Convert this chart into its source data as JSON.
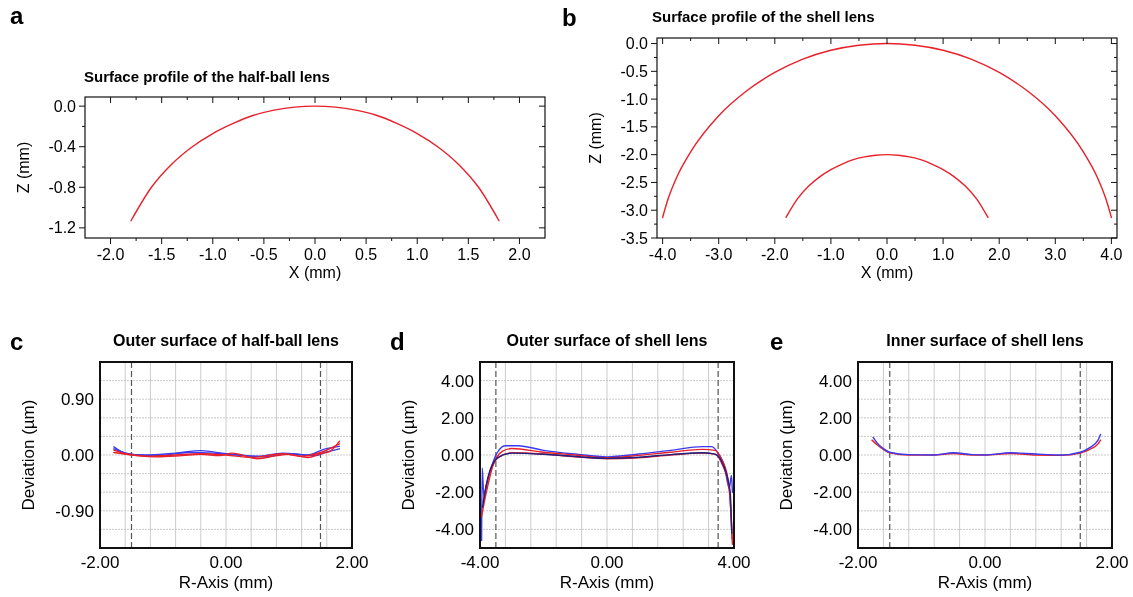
{
  "chart_data": [
    {
      "type": "line",
      "title": "Surface profile of the half-ball lens",
      "xlabel": "X (mm)",
      "ylabel": "Z (mm)",
      "annotations": [
        "a"
      ],
      "grid": false,
      "xlim": [
        -2.25,
        2.25
      ],
      "ylim": [
        -1.3,
        0.09
      ],
      "xticks": [
        {
          "value": -2,
          "label": "-2.0"
        },
        {
          "value": -1.75,
          "label": null
        },
        -1.5,
        {
          "value": -1.25,
          "label": null
        },
        {
          "value": -1,
          "label": "-1.0"
        },
        {
          "value": -0.75,
          "label": null
        },
        -0.5,
        {
          "value": -0.25,
          "label": null
        },
        {
          "value": 0,
          "label": "0.0"
        },
        {
          "value": 0.25,
          "label": null
        },
        0.5,
        {
          "value": 0.75,
          "label": null
        },
        {
          "value": 1,
          "label": "1.0"
        },
        {
          "value": 1.25,
          "label": null
        },
        1.5,
        {
          "value": 1.75,
          "label": null
        },
        {
          "value": 2,
          "label": "2.0"
        }
      ],
      "yticks": [
        {
          "value": 0,
          "label": "0.0"
        },
        {
          "value": -0.2,
          "label": null
        },
        -0.4,
        {
          "value": -0.6,
          "label": null
        },
        -0.8,
        {
          "value": -1,
          "label": null
        },
        -1.2
      ],
      "series": [
        {
          "color": "#e8202a",
          "x": [
            -1.8,
            -1.6,
            -1.4,
            -1.2,
            -1.0,
            -0.8,
            -0.6,
            -0.4,
            -0.2,
            0,
            0.2,
            0.4,
            0.6,
            0.8,
            1.0,
            1.2,
            1.4,
            1.6,
            1.8
          ],
          "values": [
            -1.13,
            -0.8,
            -0.57,
            -0.4,
            -0.27,
            -0.17,
            -0.09,
            -0.04,
            -0.01,
            0,
            -0.01,
            -0.04,
            -0.09,
            -0.17,
            -0.27,
            -0.4,
            -0.57,
            -0.8,
            -1.13
          ]
        }
      ]
    },
    {
      "type": "line",
      "title": "Surface profile of the shell lens",
      "xlabel": "X (mm)",
      "ylabel": "Z (mm)",
      "annotations": [
        "b"
      ],
      "grid": false,
      "xlim": [
        -4.1,
        4.1
      ],
      "ylim": [
        -3.5,
        0.1
      ],
      "xticks": [
        {
          "value": -4,
          "label": "-4.0"
        },
        {
          "value": -3.5,
          "label": null
        },
        {
          "value": -3,
          "label": "-3.0"
        },
        {
          "value": -2.5,
          "label": null
        },
        {
          "value": -2,
          "label": "-2.0"
        },
        {
          "value": -1.5,
          "label": null
        },
        {
          "value": -1,
          "label": "-1.0"
        },
        {
          "value": -0.5,
          "label": null
        },
        {
          "value": 0,
          "label": "0.0"
        },
        {
          "value": 0.5,
          "label": null
        },
        {
          "value": 1,
          "label": "1.0"
        },
        {
          "value": 1.5,
          "label": null
        },
        {
          "value": 2,
          "label": "2.0"
        },
        {
          "value": 2.5,
          "label": null
        },
        {
          "value": 3,
          "label": "3.0"
        },
        {
          "value": 3.5,
          "label": null
        },
        {
          "value": 4,
          "label": "4.0"
        }
      ],
      "yticks": [
        {
          "value": 0,
          "label": "0.0"
        },
        {
          "value": -0.25,
          "label": null
        },
        -0.5,
        {
          "value": -0.75,
          "label": null
        },
        {
          "value": -1,
          "label": "-1.0"
        },
        {
          "value": -1.25,
          "label": null
        },
        -1.5,
        {
          "value": -1.75,
          "label": null
        },
        {
          "value": -2,
          "label": "-2.0"
        },
        {
          "value": -2.25,
          "label": null
        },
        -2.5,
        {
          "value": -2.75,
          "label": null
        },
        {
          "value": -3,
          "label": "-3.0"
        },
        {
          "value": -3.25,
          "label": null
        },
        -3.5
      ],
      "series": [
        {
          "color": "#e8202a",
          "x": [
            -4,
            -3.9,
            -3.75,
            -3.5,
            -3,
            -2.5,
            -2,
            -1.5,
            -1,
            -0.5,
            0,
            0.5,
            1,
            1.5,
            2,
            2.5,
            3,
            3.5,
            3.75,
            3.9,
            4
          ],
          "values": [
            -3.13,
            -2.79,
            -2.41,
            -1.95,
            -1.3,
            -0.85,
            -0.52,
            -0.28,
            -0.12,
            -0.03,
            0,
            -0.03,
            -0.12,
            -0.28,
            -0.52,
            -0.85,
            -1.3,
            -1.95,
            -2.41,
            -2.79,
            -3.13
          ]
        },
        {
          "color": "#e8202a",
          "x": [
            -1.8,
            -1.6,
            -1.4,
            -1.2,
            -1.0,
            -0.8,
            -0.6,
            -0.4,
            -0.2,
            0,
            0.2,
            0.4,
            0.6,
            0.8,
            1.0,
            1.2,
            1.4,
            1.6,
            1.8
          ],
          "values": [
            -3.13,
            -2.8,
            -2.57,
            -2.4,
            -2.27,
            -2.17,
            -2.09,
            -2.04,
            -2.01,
            -2,
            -2.01,
            -2.04,
            -2.09,
            -2.17,
            -2.27,
            -2.4,
            -2.57,
            -2.8,
            -3.13
          ]
        }
      ]
    },
    {
      "type": "line",
      "title": "Outer surface of half-ball lens",
      "xlabel": "R-Axis (mm)",
      "ylabel": "Deviation (µm)",
      "annotations": [
        "c"
      ],
      "grid": true,
      "xlim": [
        -2,
        2
      ],
      "ylim": [
        -1.5,
        1.5
      ],
      "xticks": [
        {
          "value": -2,
          "label": "-2.00"
        },
        {
          "value": -1.6,
          "label": null
        },
        {
          "value": -1.2,
          "label": null
        },
        {
          "value": -0.8,
          "label": null
        },
        {
          "value": -0.4,
          "label": null
        },
        {
          "value": 0,
          "label": "0.00"
        },
        {
          "value": 0.4,
          "label": null
        },
        {
          "value": 0.8,
          "label": null
        },
        {
          "value": 1.2,
          "label": null
        },
        {
          "value": 1.6,
          "label": null
        },
        {
          "value": 2,
          "label": "2.00"
        }
      ],
      "yticks": [
        {
          "value": -1.2,
          "label": null
        },
        {
          "value": -0.9,
          "label": "-0.90"
        },
        {
          "value": -0.6,
          "label": null
        },
        {
          "value": -0.3,
          "label": null
        },
        {
          "value": 0,
          "label": "0.00"
        },
        {
          "value": 0.3,
          "label": null
        },
        {
          "value": 0.6,
          "label": null
        },
        {
          "value": 0.9,
          "label": "0.90"
        },
        {
          "value": 1.2,
          "label": null
        }
      ],
      "ref_lines": [
        {
          "axis": "x",
          "value": -1.5,
          "color": "#555555",
          "line_style": "dashed"
        },
        {
          "axis": "x",
          "value": 1.5,
          "color": "#555555",
          "line_style": "dashed"
        }
      ],
      "series": [
        {
          "color": "#3a3aee",
          "x": [
            -1.78,
            -1.6,
            -1.3,
            -0.8,
            -0.4,
            0,
            0.5,
            0.9,
            1.3,
            1.55,
            1.8
          ],
          "values": [
            0.13,
            0.03,
            0,
            0.03,
            0.07,
            0.02,
            -0.02,
            0.03,
            0,
            0.09,
            0.14
          ]
        },
        {
          "color": "#3a3aee",
          "x": [
            -1.78,
            -1.5,
            -1.1,
            -0.6,
            -0.2,
            0.2,
            0.6,
            1.0,
            1.4,
            1.6,
            1.8
          ],
          "values": [
            0.1,
            0.01,
            -0.01,
            0.04,
            0.03,
            0,
            -0.03,
            0.02,
            -0.01,
            0.05,
            0.1
          ]
        },
        {
          "color": "#e8202a",
          "x": [
            -1.78,
            -1.6,
            -1.4,
            -1.1,
            -0.7,
            -0.4,
            -0.1,
            0.1,
            0.5,
            0.8,
            1.0,
            1.3,
            1.5,
            1.65,
            1.8
          ],
          "values": [
            0.08,
            0.02,
            -0.01,
            -0.03,
            -0.01,
            0.01,
            -0.01,
            0.03,
            -0.06,
            -0.01,
            0.01,
            -0.04,
            0.02,
            0.06,
            0.22
          ]
        },
        {
          "color": "#e8202a",
          "x": [
            -1.78,
            -1.5,
            -1.2,
            -0.8,
            -0.4,
            0,
            0.4,
            0.9,
            1.2,
            1.5,
            1.8
          ],
          "values": [
            0.04,
            0,
            -0.02,
            0,
            0.02,
            0,
            -0.04,
            0.02,
            -0.02,
            0.04,
            0.18
          ]
        }
      ]
    },
    {
      "type": "line",
      "title": "Outer surface of shell lens",
      "xlabel": "R-Axis (mm)",
      "ylabel": "Deviation (µm)",
      "annotations": [
        "d"
      ],
      "grid": true,
      "xlim": [
        -4,
        4
      ],
      "ylim": [
        -5,
        5
      ],
      "xticks": [
        {
          "value": -4,
          "label": "-4.00"
        },
        {
          "value": -3.2,
          "label": null
        },
        {
          "value": -2.4,
          "label": null
        },
        {
          "value": -1.6,
          "label": null
        },
        {
          "value": -0.8,
          "label": null
        },
        {
          "value": 0,
          "label": "0.00"
        },
        {
          "value": 0.8,
          "label": null
        },
        {
          "value": 1.6,
          "label": null
        },
        {
          "value": 2.4,
          "label": null
        },
        {
          "value": 3.2,
          "label": null
        },
        {
          "value": 4,
          "label": "4.00"
        }
      ],
      "yticks": [
        {
          "value": -4,
          "label": "-4.00"
        },
        {
          "value": -3,
          "label": null
        },
        {
          "value": -2,
          "label": "-2.00"
        },
        {
          "value": -1,
          "label": null
        },
        {
          "value": 0,
          "label": "0.00"
        },
        {
          "value": 1,
          "label": null
        },
        {
          "value": 2,
          "label": "2.00"
        },
        {
          "value": 3,
          "label": null
        },
        {
          "value": 4,
          "label": "4.00"
        }
      ],
      "ref_lines": [
        {
          "axis": "x",
          "value": -3.5,
          "color": "#555555",
          "line_style": "dashed"
        },
        {
          "axis": "x",
          "value": 3.5,
          "color": "#555555",
          "line_style": "dashed"
        }
      ],
      "series": [
        {
          "color": "#3a3aee",
          "x": [
            -3.95,
            -3.93,
            -3.88,
            -3.8,
            -3.7,
            -3.5,
            -3.2,
            -2.8,
            -2,
            -1,
            0,
            1,
            2,
            3,
            3.3,
            3.5,
            3.7,
            3.85,
            3.92,
            3.95
          ],
          "values": [
            -4.6,
            -0.7,
            -2.2,
            -1.6,
            -1.0,
            0,
            0.5,
            0.5,
            0.25,
            0.05,
            -0.1,
            0.05,
            0.25,
            0.45,
            0.45,
            0.1,
            -0.6,
            -1.8,
            -1.1,
            -2.0
          ]
        },
        {
          "color": "#e8202a",
          "x": [
            -3.95,
            -3.8,
            -3.6,
            -3.3,
            -3,
            -2,
            -1,
            0,
            1,
            2,
            3,
            3.4,
            3.6,
            3.8,
            3.9,
            3.95
          ],
          "values": [
            -3.3,
            -2,
            -0.6,
            0.2,
            0.35,
            0.15,
            0,
            -0.15,
            -0.02,
            0.15,
            0.3,
            0.25,
            -0.2,
            -1.2,
            -3,
            -4.8
          ]
        },
        {
          "color": "#e8202a",
          "x": [
            -3.9,
            -3.7,
            -3.4,
            -3,
            -2,
            -1,
            0,
            1,
            2,
            3,
            3.4,
            3.6,
            3.85,
            3.94
          ],
          "values": [
            -2.5,
            -1,
            -0.1,
            0.12,
            0.05,
            -0.1,
            -0.2,
            -0.15,
            0,
            0.1,
            0.05,
            -0.4,
            -1.8,
            -4.5
          ]
        },
        {
          "color": "#202080",
          "x": [
            -3.92,
            -3.75,
            -3.45,
            -3,
            -2,
            -1,
            0,
            1,
            2,
            3,
            3.4,
            3.65,
            3.88,
            3.93
          ],
          "values": [
            -2.8,
            -1.2,
            -0.15,
            0.1,
            0.04,
            -0.08,
            -0.18,
            -0.12,
            0.02,
            0.12,
            0.05,
            -0.5,
            -2,
            -4.2
          ]
        }
      ]
    },
    {
      "type": "line",
      "title": "Inner surface of shell lens",
      "xlabel": "R-Axis (mm)",
      "ylabel": "Deviation (µm)",
      "annotations": [
        "e"
      ],
      "grid": true,
      "xlim": [
        -2,
        2
      ],
      "ylim": [
        -5,
        5
      ],
      "xticks": [
        {
          "value": -2,
          "label": "-2.00"
        },
        {
          "value": -1.6,
          "label": null
        },
        {
          "value": -1.2,
          "label": null
        },
        {
          "value": -0.8,
          "label": null
        },
        {
          "value": -0.4,
          "label": null
        },
        {
          "value": 0,
          "label": "0.00"
        },
        {
          "value": 0.4,
          "label": null
        },
        {
          "value": 0.8,
          "label": null
        },
        {
          "value": 1.2,
          "label": null
        },
        {
          "value": 1.6,
          "label": null
        },
        {
          "value": 2,
          "label": "2.00"
        }
      ],
      "yticks": [
        {
          "value": -4,
          "label": "-4.00"
        },
        {
          "value": -3,
          "label": null
        },
        {
          "value": -2,
          "label": "-2.00"
        },
        {
          "value": -1,
          "label": null
        },
        {
          "value": 0,
          "label": "0.00"
        },
        {
          "value": 1,
          "label": null
        },
        {
          "value": 2,
          "label": "2.00"
        },
        {
          "value": 3,
          "label": null
        },
        {
          "value": 4,
          "label": "4.00"
        }
      ],
      "ref_lines": [
        {
          "axis": "x",
          "value": -1.5,
          "color": "#555555",
          "line_style": "dashed"
        },
        {
          "axis": "x",
          "value": 1.5,
          "color": "#555555",
          "line_style": "dashed"
        }
      ],
      "series": [
        {
          "color": "#e8202a",
          "x": [
            -1.78,
            -1.7,
            -1.6,
            -1.5,
            -1.2,
            -0.8,
            -0.5,
            -0.2,
            0,
            0.4,
            0.8,
            1.2,
            1.5,
            1.65,
            1.78,
            1.82
          ],
          "values": [
            0.8,
            0.55,
            0.3,
            0.12,
            0,
            0,
            0.08,
            0,
            0,
            0.08,
            0,
            -0.02,
            0.1,
            0.3,
            0.6,
            0.8
          ]
        },
        {
          "color": "#3a3aee",
          "x": [
            -1.76,
            -1.7,
            -1.6,
            -1.5,
            -1.2,
            -0.8,
            -0.5,
            -0.2,
            0,
            0.4,
            0.8,
            1.2,
            1.5,
            1.65,
            1.78,
            1.82
          ],
          "values": [
            0.95,
            0.65,
            0.35,
            0.15,
            0.02,
            0,
            0.12,
            0.02,
            0,
            0.12,
            0.05,
            0,
            0.15,
            0.4,
            0.8,
            1.1
          ]
        }
      ]
    }
  ]
}
